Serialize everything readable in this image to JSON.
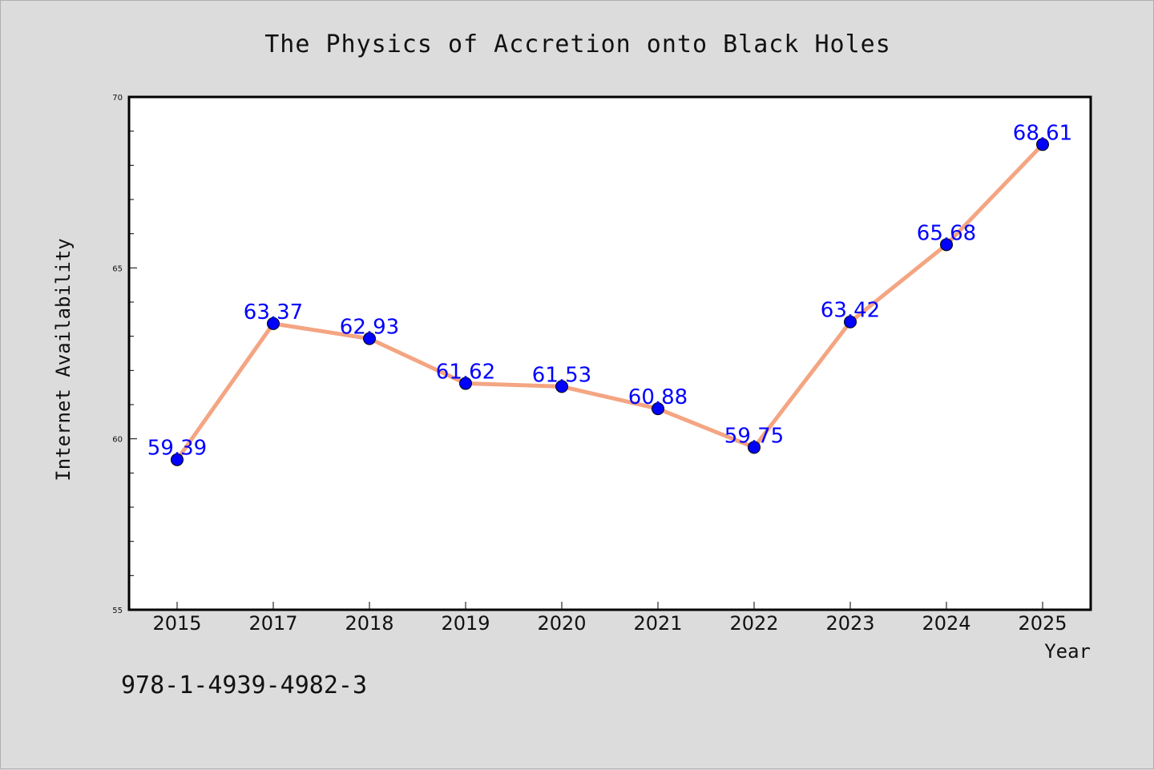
{
  "chart_data": {
    "type": "line",
    "title": "The Physics of Accretion onto Black Holes",
    "xlabel": "Year",
    "ylabel": "Internet Availability",
    "categories": [
      "2015",
      "2017",
      "2018",
      "2019",
      "2020",
      "2021",
      "2022",
      "2023",
      "2024",
      "2025"
    ],
    "series": [
      {
        "values": [
          59.39,
          63.37,
          62.93,
          61.62,
          61.53,
          60.88,
          59.75,
          63.42,
          65.68,
          68.61
        ],
        "labels": [
          "59.39",
          "63.37",
          "62.93",
          "61.62",
          "61.53",
          "60.88",
          "59.75",
          "63.42",
          "65.68",
          "68.61"
        ]
      }
    ],
    "ylim": [
      55,
      70
    ],
    "yticks": [
      55,
      60,
      65,
      70
    ],
    "ytick_labels": [
      "55",
      "60",
      "65",
      "70"
    ],
    "grid": false,
    "legend": "none",
    "line_color": "#f4a582",
    "marker_color": "#0000ff",
    "label_color": "#0000ff",
    "background_color": "#dcdcdc",
    "plot_background_color": "#ffffff"
  },
  "footer": {
    "isbn": "978-1-4939-4982-3"
  }
}
